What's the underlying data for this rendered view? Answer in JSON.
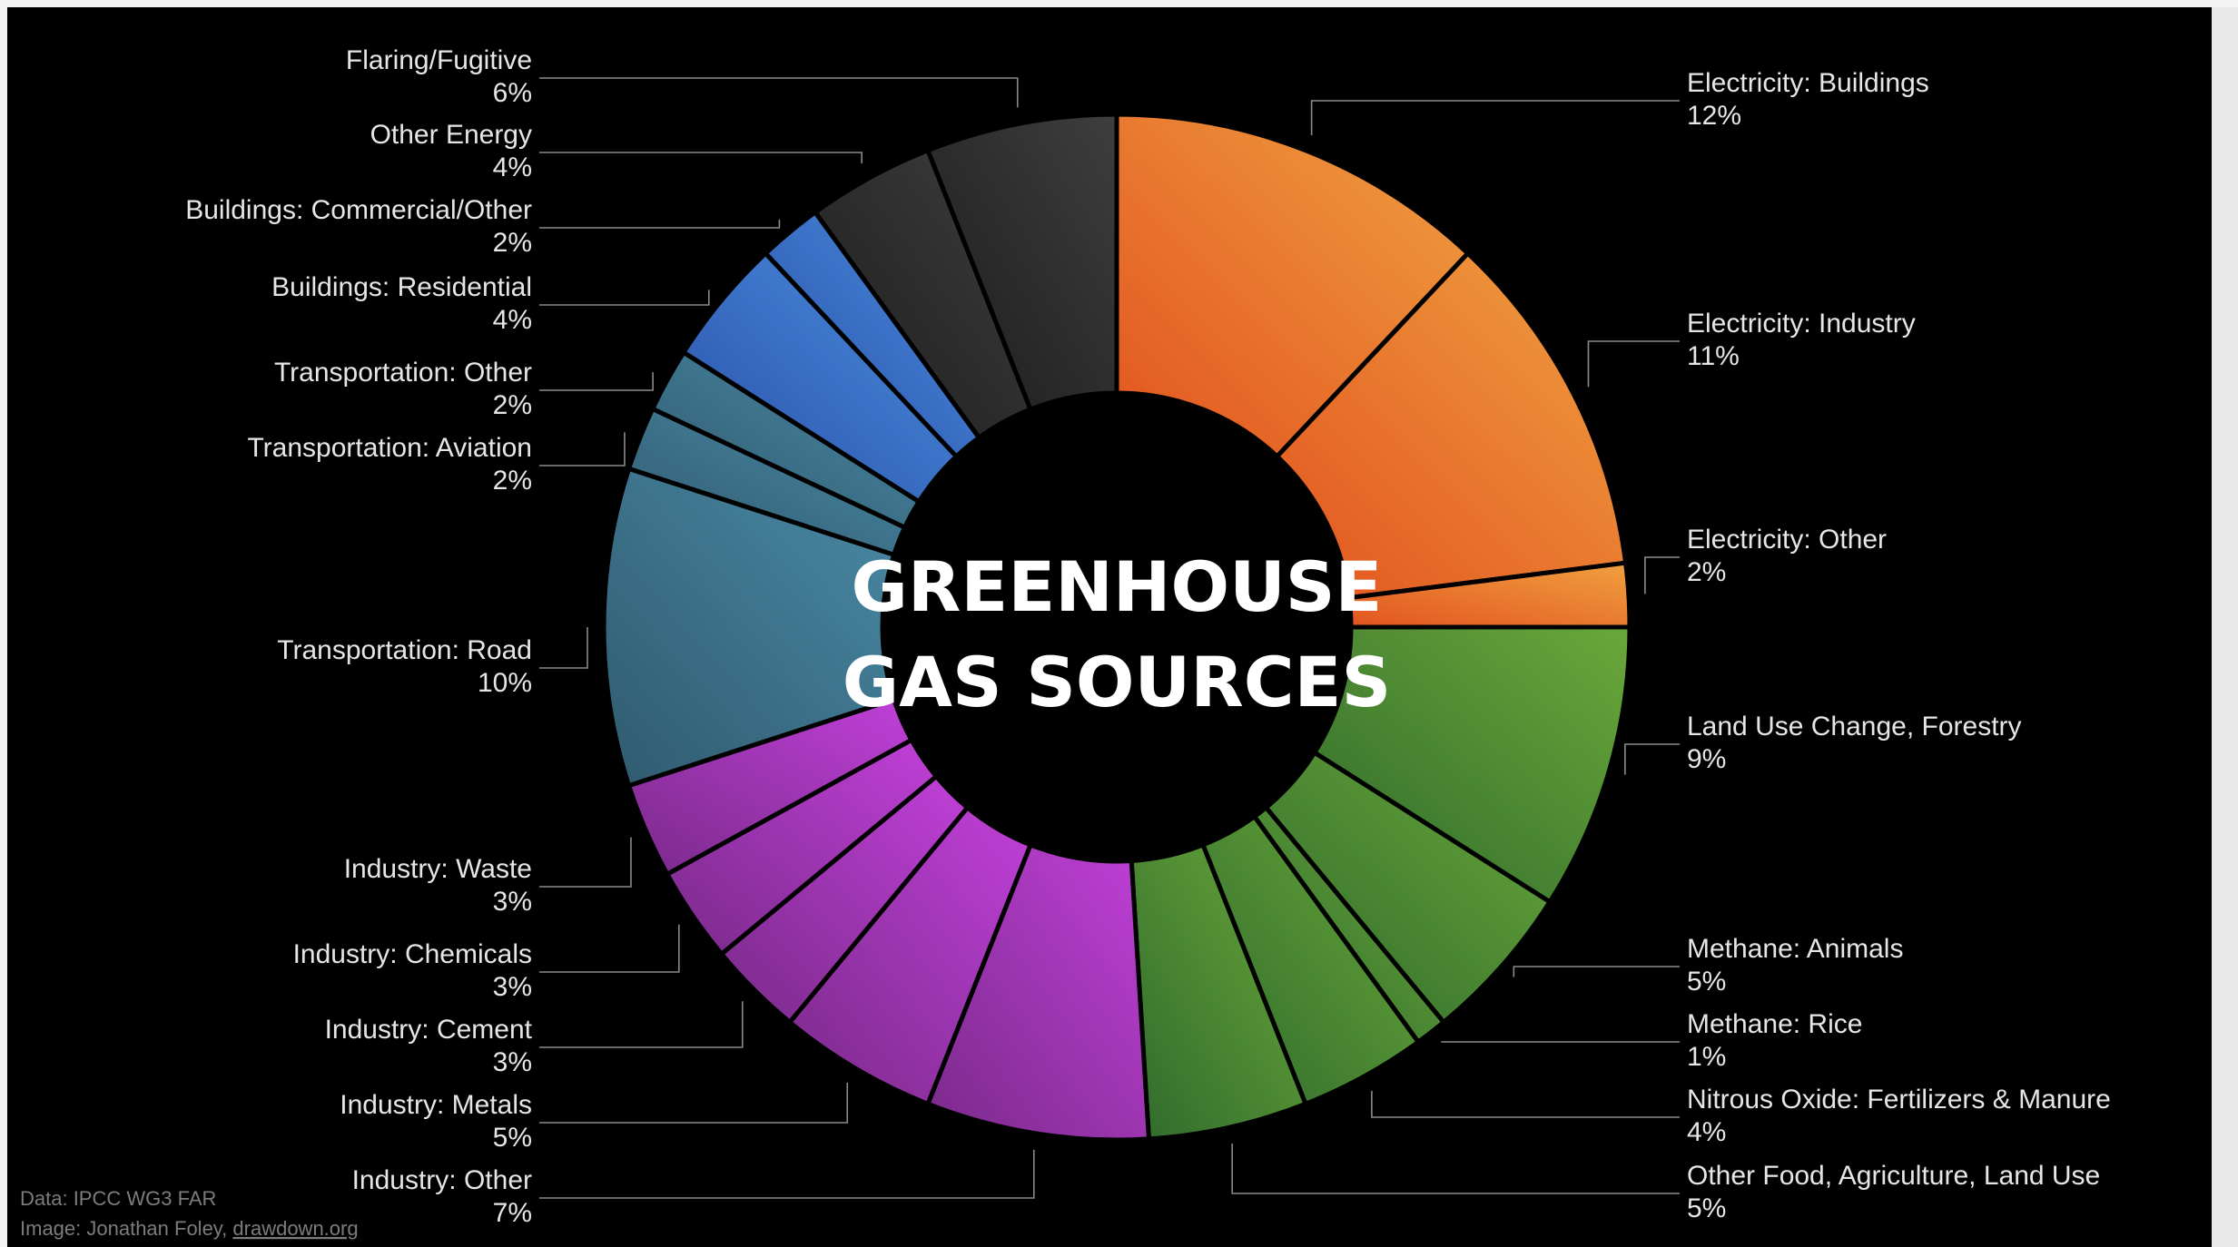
{
  "chart_data": {
    "type": "pie",
    "title_lines": [
      "GREENHOUSE",
      "GAS SOURCES"
    ],
    "unit": "%",
    "slices": [
      {
        "label": "Electricity: Buildings",
        "value": 12,
        "pct_label": "12%",
        "color": "#e2541f",
        "color2": "#f0a040",
        "side": "right"
      },
      {
        "label": "Electricity: Industry",
        "value": 11,
        "pct_label": "11%",
        "color": "#e2541f",
        "color2": "#f0a040",
        "side": "right"
      },
      {
        "label": "Electricity: Other",
        "value": 2,
        "pct_label": "2%",
        "color": "#e2541f",
        "color2": "#f0a040",
        "side": "right"
      },
      {
        "label": "Land Use Change, Forestry",
        "value": 9,
        "pct_label": "9%",
        "color": "#2f6a2c",
        "color2": "#6aa83a",
        "side": "right"
      },
      {
        "label": "Methane: Animals",
        "value": 5,
        "pct_label": "5%",
        "color": "#2f6a2c",
        "color2": "#6aa83a",
        "side": "right"
      },
      {
        "label": "Methane: Rice",
        "value": 1,
        "pct_label": "1%",
        "color": "#2f6a2c",
        "color2": "#6aa83a",
        "side": "right"
      },
      {
        "label": "Nitrous Oxide: Fertilizers & Manure",
        "value": 4,
        "pct_label": "4%",
        "color": "#2f6a2c",
        "color2": "#6aa83a",
        "side": "right"
      },
      {
        "label": "Other Food, Agriculture, Land Use",
        "value": 5,
        "pct_label": "5%",
        "color": "#2f6a2c",
        "color2": "#6aa83a",
        "side": "right"
      },
      {
        "label": "Industry: Other",
        "value": 7,
        "pct_label": "7%",
        "color": "#7a2a8a",
        "color2": "#c040d8",
        "side": "left"
      },
      {
        "label": "Industry: Metals",
        "value": 5,
        "pct_label": "5%",
        "color": "#7a2a8a",
        "color2": "#c040d8",
        "side": "left"
      },
      {
        "label": "Industry: Cement",
        "value": 3,
        "pct_label": "3%",
        "color": "#7a2a8a",
        "color2": "#c040d8",
        "side": "left"
      },
      {
        "label": "Industry: Chemicals",
        "value": 3,
        "pct_label": "3%",
        "color": "#7a2a8a",
        "color2": "#c040d8",
        "side": "left"
      },
      {
        "label": "Industry: Waste",
        "value": 3,
        "pct_label": "3%",
        "color": "#7a2a8a",
        "color2": "#c040d8",
        "side": "left"
      },
      {
        "label": "Transportation: Road",
        "value": 10,
        "pct_label": "10%",
        "color": "#2f5a6e",
        "color2": "#4a8aa6",
        "side": "left"
      },
      {
        "label": "Transportation: Aviation",
        "value": 2,
        "pct_label": "2%",
        "color": "#2f5a6e",
        "color2": "#4a8aa6",
        "side": "left"
      },
      {
        "label": "Transportation: Other",
        "value": 2,
        "pct_label": "2%",
        "color": "#2f5a6e",
        "color2": "#4a8aa6",
        "side": "left"
      },
      {
        "label": "Buildings: Residential",
        "value": 4,
        "pct_label": "4%",
        "color": "#2a4fa8",
        "color2": "#4a8fe0",
        "side": "left"
      },
      {
        "label": "Buildings: Commercial/Other",
        "value": 2,
        "pct_label": "2%",
        "color": "#2a4fa8",
        "color2": "#4a8fe0",
        "side": "left"
      },
      {
        "label": "Other Energy",
        "value": 4,
        "pct_label": "4%",
        "color": "#1c1c1c",
        "color2": "#3e3e3e",
        "side": "left"
      },
      {
        "label": "Flaring/Fugitive",
        "value": 6,
        "pct_label": "6%",
        "color": "#1c1c1c",
        "color2": "#3e3e3e",
        "side": "left"
      }
    ]
  },
  "credits": {
    "data_line": "Data: IPCC WG3 FAR",
    "image_prefix": "Image: Jonathan Foley, ",
    "image_link": "drawdown.org"
  }
}
